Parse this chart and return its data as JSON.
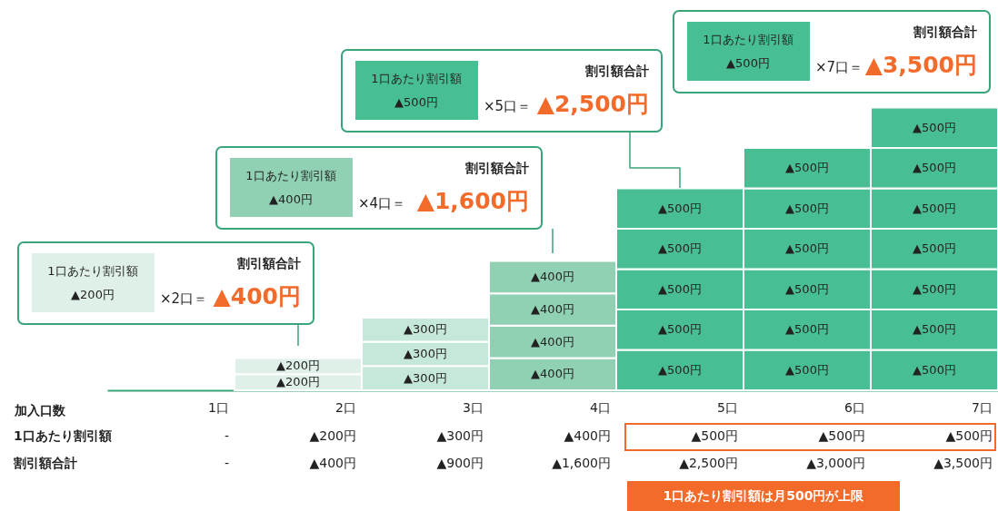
{
  "chart_data": {
    "type": "bar",
    "stacked": true,
    "grid": false,
    "tick_labels": "x",
    "xlabel": "加入口数",
    "categories": [
      "1口",
      "2口",
      "3口",
      "4口",
      "5口",
      "6口",
      "7口"
    ],
    "series": [
      {
        "colors": [
          null,
          "#dff0e8",
          "#c6e8d8",
          "#90d1b4",
          "#48bf93",
          "#48bf93",
          "#48bf93"
        ],
        "values": [
          null,
          200,
          300,
          400,
          500,
          500,
          500
        ],
        "value_labels": [
          null,
          "▲200円",
          "▲300円",
          "▲400円",
          "▲500円",
          "▲500円",
          "▲500円"
        ]
      },
      {
        "colors": [
          null,
          "#dff0e8",
          "#c6e8d8",
          "#90d1b4",
          "#48bf93",
          "#48bf93",
          "#48bf93"
        ],
        "values": [
          null,
          200,
          300,
          400,
          500,
          500,
          500
        ],
        "value_labels": [
          null,
          "▲200円",
          "▲300円",
          "▲400円",
          "▲500円",
          "▲500円",
          "▲500円"
        ]
      },
      {
        "colors": [
          null,
          null,
          "#c6e8d8",
          "#90d1b4",
          "#48bf93",
          "#48bf93",
          "#48bf93"
        ],
        "values": [
          null,
          null,
          300,
          400,
          500,
          500,
          500
        ],
        "value_labels": [
          null,
          null,
          "▲300円",
          "▲400円",
          "▲500円",
          "▲500円",
          "▲500円"
        ]
      },
      {
        "colors": [
          null,
          null,
          null,
          "#90d1b4",
          "#48bf93",
          "#48bf93",
          "#48bf93"
        ],
        "values": [
          null,
          null,
          null,
          400,
          500,
          500,
          500
        ],
        "value_labels": [
          null,
          null,
          null,
          "▲400円",
          "▲500円",
          "▲500円",
          "▲500円"
        ]
      },
      {
        "colors": [
          null,
          null,
          null,
          null,
          "#48bf93",
          "#48bf93",
          "#48bf93"
        ],
        "values": [
          null,
          null,
          null,
          null,
          500,
          500,
          500
        ],
        "value_labels": [
          null,
          null,
          null,
          null,
          "▲500円",
          "▲500円",
          "▲500円"
        ]
      },
      {
        "colors": [
          null,
          null,
          null,
          null,
          null,
          "#48bf93",
          "#48bf93"
        ],
        "values": [
          null,
          null,
          null,
          null,
          null,
          500,
          500
        ],
        "value_labels": [
          null,
          null,
          null,
          null,
          null,
          "▲500円",
          "▲500円"
        ]
      },
      {
        "colors": [
          null,
          null,
          null,
          null,
          null,
          null,
          "#48bf93"
        ],
        "values": [
          null,
          null,
          null,
          null,
          null,
          null,
          500
        ],
        "value_labels": [
          null,
          null,
          null,
          null,
          null,
          null,
          "▲500円"
        ]
      }
    ],
    "annotations": [
      "1口あたり割引額",
      "割引額合計",
      "1口あたり割引額は月500円が上限",
      "-",
      "▲200円",
      "▲300円",
      "▲400円",
      "▲500円",
      "▲500円",
      "▲500円",
      "-",
      "▲400円",
      "▲900円",
      "▲1,600円",
      "▲2,500円",
      "▲3,000円",
      "▲3,500円",
      "1口あたり割引額",
      "▲200円",
      "×2口＝",
      "割引額合計",
      "▲400円",
      "1口あたり割引額",
      "▲400円",
      "×4口＝",
      "割引額合計",
      "▲1,600円",
      "1口あたり割引額",
      "▲500円",
      "×5口＝",
      "割引額合計",
      "▲2,500円",
      "1口あたり割引額",
      "▲500円",
      "×7口＝",
      "割引額合計",
      "▲3,500円"
    ]
  }
}
